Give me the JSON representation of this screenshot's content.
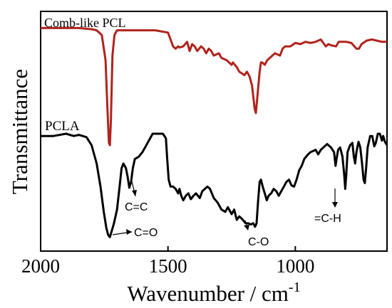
{
  "chart_data": {
    "type": "line",
    "title": "",
    "xlabel": "Wavenumber / cm",
    "xlabel_superscript": "-1",
    "ylabel": "Transmittance",
    "xlim": [
      2000,
      640
    ],
    "x_reversed": true,
    "y_ticks_shown": false,
    "ylim": [
      0,
      100
    ],
    "grid": false,
    "legend": "none",
    "x_ticks": [
      2000,
      1500,
      1000
    ],
    "x_tick_labels": [
      "2000",
      "1500",
      "1000"
    ],
    "series": [
      {
        "name": "Comb-like PCL",
        "color": "#b0231d",
        "points": [
          [
            2000,
            94
          ],
          [
            1950,
            94
          ],
          [
            1900,
            94
          ],
          [
            1850,
            94
          ],
          [
            1800,
            93.5
          ],
          [
            1780,
            93
          ],
          [
            1760,
            91
          ],
          [
            1745,
            80
          ],
          [
            1738,
            60
          ],
          [
            1732,
            44
          ],
          [
            1728,
            43
          ],
          [
            1724,
            54
          ],
          [
            1718,
            82
          ],
          [
            1710,
            91
          ],
          [
            1700,
            93
          ],
          [
            1650,
            93
          ],
          [
            1600,
            93
          ],
          [
            1550,
            93
          ],
          [
            1500,
            92
          ],
          [
            1490,
            89
          ],
          [
            1480,
            86
          ],
          [
            1470,
            85
          ],
          [
            1460,
            86
          ],
          [
            1455,
            85.5
          ],
          [
            1440,
            86
          ],
          [
            1425,
            88
          ],
          [
            1415,
            84
          ],
          [
            1405,
            87
          ],
          [
            1395,
            86
          ],
          [
            1385,
            84
          ],
          [
            1370,
            86
          ],
          [
            1360,
            85
          ],
          [
            1350,
            83
          ],
          [
            1340,
            85
          ],
          [
            1330,
            84
          ],
          [
            1320,
            82
          ],
          [
            1300,
            83
          ],
          [
            1290,
            81
          ],
          [
            1270,
            80
          ],
          [
            1250,
            78
          ],
          [
            1245,
            79
          ],
          [
            1230,
            77
          ],
          [
            1220,
            75
          ],
          [
            1200,
            73.5
          ],
          [
            1190,
            75
          ],
          [
            1180,
            73
          ],
          [
            1170,
            69
          ],
          [
            1160,
            59
          ],
          [
            1155,
            57
          ],
          [
            1150,
            63
          ],
          [
            1140,
            75
          ],
          [
            1135,
            79
          ],
          [
            1130,
            79
          ],
          [
            1120,
            78
          ],
          [
            1110,
            80
          ],
          [
            1100,
            81
          ],
          [
            1080,
            83
          ],
          [
            1060,
            82
          ],
          [
            1050,
            85
          ],
          [
            1040,
            86
          ],
          [
            1020,
            86
          ],
          [
            1000,
            87.5
          ],
          [
            980,
            87
          ],
          [
            960,
            88
          ],
          [
            940,
            87.5
          ],
          [
            920,
            88
          ],
          [
            900,
            89
          ],
          [
            880,
            86
          ],
          [
            870,
            87
          ],
          [
            860,
            86.5
          ],
          [
            840,
            86
          ],
          [
            830,
            88
          ],
          [
            820,
            88
          ],
          [
            800,
            88
          ],
          [
            780,
            87.5
          ],
          [
            760,
            85
          ],
          [
            750,
            85
          ],
          [
            740,
            87
          ],
          [
            720,
            88.5
          ],
          [
            700,
            89
          ],
          [
            680,
            88.5
          ],
          [
            660,
            88
          ],
          [
            640,
            88
          ]
        ]
      },
      {
        "name": "PCLA",
        "color": "#000000",
        "points": [
          [
            2000,
            47
          ],
          [
            1950,
            47
          ],
          [
            1900,
            48
          ],
          [
            1870,
            47
          ],
          [
            1850,
            47.5
          ],
          [
            1820,
            46.5
          ],
          [
            1800,
            43
          ],
          [
            1780,
            35
          ],
          [
            1765,
            25
          ],
          [
            1752,
            14
          ],
          [
            1742,
            7
          ],
          [
            1735,
            4
          ],
          [
            1728,
            3
          ],
          [
            1720,
            6
          ],
          [
            1712,
            9
          ],
          [
            1700,
            15
          ],
          [
            1690,
            25
          ],
          [
            1682,
            33
          ],
          [
            1675,
            35
          ],
          [
            1665,
            33
          ],
          [
            1658,
            29
          ],
          [
            1652,
            24.5
          ],
          [
            1645,
            27
          ],
          [
            1638,
            33
          ],
          [
            1630,
            37
          ],
          [
            1615,
            38
          ],
          [
            1600,
            40
          ],
          [
            1580,
            44
          ],
          [
            1560,
            48
          ],
          [
            1540,
            48
          ],
          [
            1520,
            48
          ],
          [
            1508,
            46
          ],
          [
            1503,
            37
          ],
          [
            1497,
            28
          ],
          [
            1490,
            25
          ],
          [
            1480,
            25
          ],
          [
            1470,
            24
          ],
          [
            1460,
            22
          ],
          [
            1455,
            24
          ],
          [
            1448,
            21
          ],
          [
            1440,
            19
          ],
          [
            1430,
            21
          ],
          [
            1420,
            22
          ],
          [
            1410,
            19.5
          ],
          [
            1400,
            21
          ],
          [
            1390,
            22
          ],
          [
            1375,
            20
          ],
          [
            1365,
            23
          ],
          [
            1355,
            24
          ],
          [
            1345,
            25
          ],
          [
            1335,
            24
          ],
          [
            1320,
            20
          ],
          [
            1305,
            18
          ],
          [
            1290,
            15
          ],
          [
            1275,
            14
          ],
          [
            1265,
            16
          ],
          [
            1250,
            13
          ],
          [
            1240,
            15
          ],
          [
            1230,
            10.5
          ],
          [
            1220,
            12
          ],
          [
            1210,
            11
          ],
          [
            1195,
            9
          ],
          [
            1185,
            9
          ],
          [
            1175,
            8.5
          ],
          [
            1165,
            9
          ],
          [
            1158,
            7.5
          ],
          [
            1152,
            9
          ],
          [
            1146,
            19
          ],
          [
            1140,
            27
          ],
          [
            1135,
            28
          ],
          [
            1128,
            25
          ],
          [
            1120,
            22
          ],
          [
            1112,
            19
          ],
          [
            1105,
            21
          ],
          [
            1095,
            22
          ],
          [
            1085,
            24
          ],
          [
            1075,
            23
          ],
          [
            1065,
            21
          ],
          [
            1055,
            23
          ],
          [
            1045,
            25
          ],
          [
            1035,
            27
          ],
          [
            1025,
            28
          ],
          [
            1015,
            25.5
          ],
          [
            1005,
            25
          ],
          [
            995,
            28
          ],
          [
            985,
            32
          ],
          [
            975,
            34
          ],
          [
            965,
            37
          ],
          [
            950,
            39
          ],
          [
            940,
            40
          ],
          [
            930,
            40.5
          ],
          [
            920,
            41
          ],
          [
            910,
            39
          ],
          [
            900,
            41
          ],
          [
            890,
            42
          ],
          [
            875,
            43.5
          ],
          [
            860,
            42
          ],
          [
            848,
            40
          ],
          [
            842,
            34
          ],
          [
            838,
            37
          ],
          [
            832,
            41
          ],
          [
            824,
            42
          ],
          [
            815,
            38
          ],
          [
            808,
            30
          ],
          [
            804,
            24
          ],
          [
            800,
            30
          ],
          [
            795,
            40
          ],
          [
            785,
            43
          ],
          [
            776,
            44
          ],
          [
            770,
            38
          ],
          [
            765,
            35
          ],
          [
            760,
            40
          ],
          [
            752,
            44.5
          ],
          [
            745,
            42
          ],
          [
            738,
            35
          ],
          [
            732,
            28
          ],
          [
            727,
            26.5
          ],
          [
            722,
            33
          ],
          [
            716,
            42
          ],
          [
            706,
            47
          ],
          [
            698,
            47
          ],
          [
            690,
            42.5
          ],
          [
            684,
            44
          ],
          [
            676,
            48
          ],
          [
            668,
            48
          ],
          [
            660,
            45
          ],
          [
            655,
            47
          ],
          [
            648,
            44.5
          ],
          [
            640,
            43
          ]
        ]
      }
    ],
    "annotations": [
      {
        "text": "C=C",
        "arrow_to": [
          1652,
          25
        ]
      },
      {
        "text": "C=O",
        "arrow_to": [
          1730,
          4
        ]
      },
      {
        "text": "C-O",
        "arrow_to": [
          1158,
          7
        ]
      },
      {
        "text": "=C-H",
        "arrow_to": [
          804,
          24
        ]
      }
    ]
  }
}
